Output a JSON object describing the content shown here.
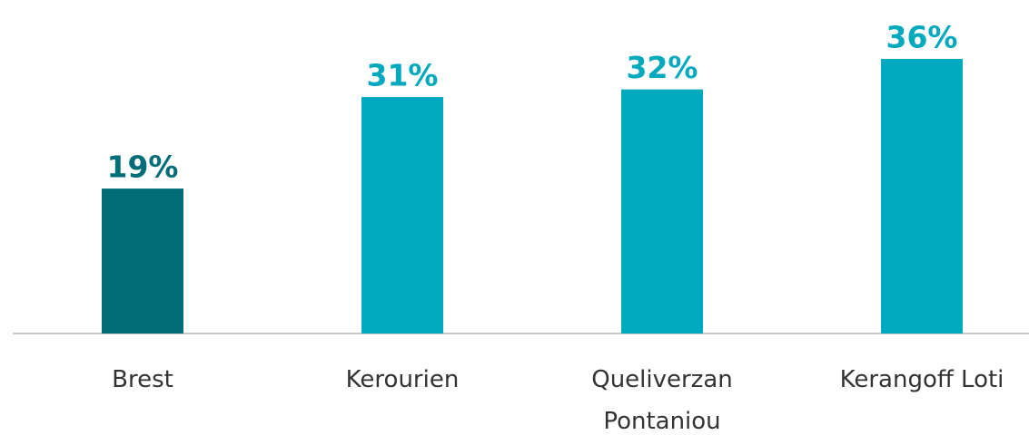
{
  "chart_data": {
    "type": "bar",
    "categories": [
      "Brest",
      "Kerourien",
      "Queliverzan Pontaniou",
      "Kerangoff Loti"
    ],
    "values": [
      19,
      31,
      32,
      36
    ],
    "value_labels": [
      "19%",
      "31%",
      "32%",
      "36%"
    ],
    "colors": [
      "#006d77",
      "#00a9bd",
      "#00a9bd",
      "#00a9bd"
    ]
  }
}
